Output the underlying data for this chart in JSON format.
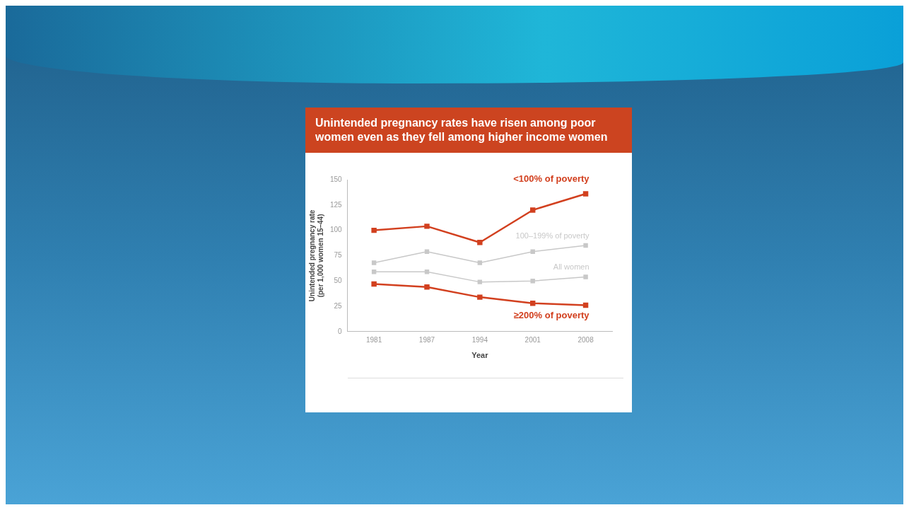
{
  "chart_data": {
    "type": "line",
    "title": "Unintended pregnancy rates have risen among poor women even as they fell among higher income women",
    "xlabel": "Year",
    "ylabel": "Unintended pregnancy rate\n(per 1,000 women 15–44)",
    "categories": [
      "1981",
      "1987",
      "1994",
      "2001",
      "2008"
    ],
    "series": [
      {
        "name": "<100% of poverty",
        "color": "#d2401f",
        "values": [
          100,
          104,
          88,
          120,
          136
        ]
      },
      {
        "name": "100–199% of poverty",
        "color": "#c8c8c8",
        "values": [
          68,
          79,
          68,
          79,
          85
        ]
      },
      {
        "name": "All women",
        "color": "#c8c8c8",
        "values": [
          59,
          59,
          49,
          50,
          54
        ]
      },
      {
        "name": "≥200% of poverty",
        "color": "#d2401f",
        "values": [
          47,
          44,
          34,
          28,
          26
        ]
      }
    ],
    "ylim": [
      0,
      150
    ],
    "yticks": [
      0,
      25,
      50,
      75,
      100,
      125,
      150
    ],
    "grid": false,
    "legend": false,
    "marker": "square",
    "line_style": "solid"
  }
}
